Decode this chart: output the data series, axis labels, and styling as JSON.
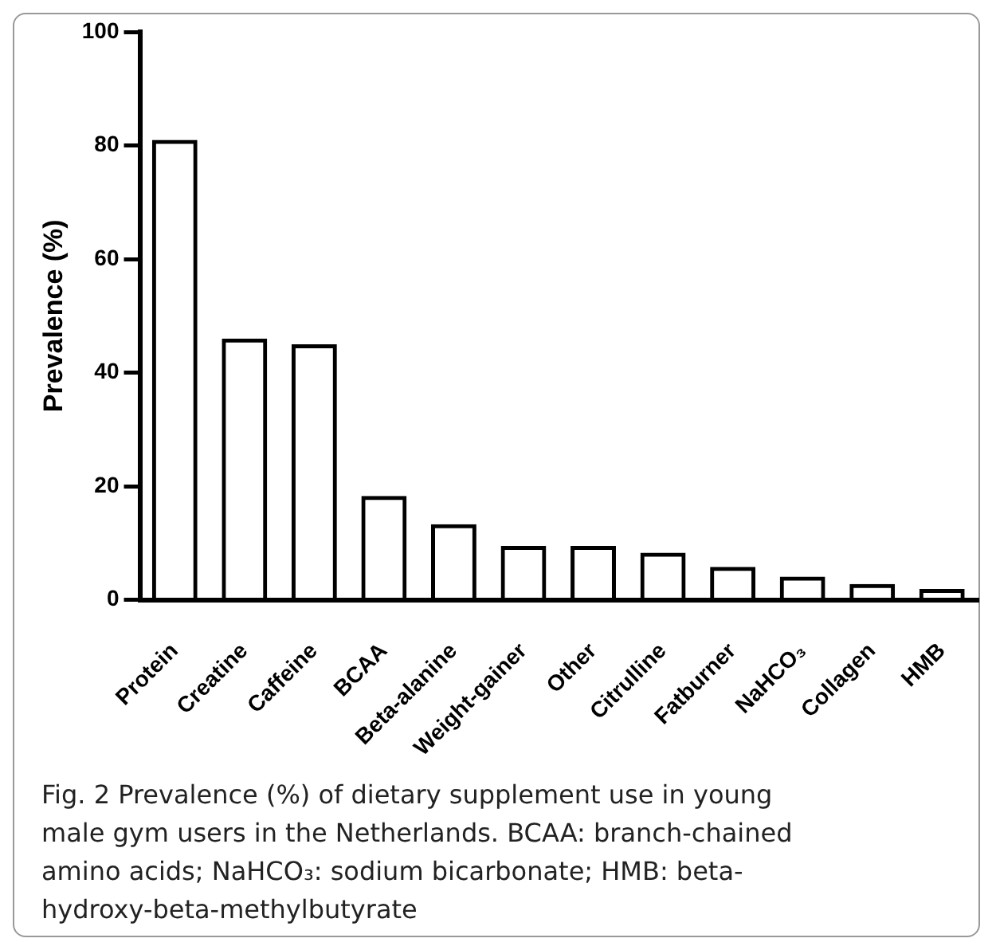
{
  "chart_data": {
    "type": "bar",
    "ylabel": "Prevalence (%)",
    "categories": [
      "Protein",
      "Creatine",
      "Caffeine",
      "BCAA",
      "Beta-alanine",
      "Weight-gainer",
      "Other",
      "Citrulline",
      "Fatburner",
      "NaHCO₃",
      "Collagen",
      "HMB"
    ],
    "values": [
      81,
      46,
      45,
      18.3,
      13.3,
      9.5,
      9.5,
      8.3,
      5.8,
      4.1,
      2.8,
      1.9
    ],
    "color": "#000000",
    "ylim": [
      0,
      100
    ],
    "yticks": [
      0,
      20,
      40,
      60,
      80,
      100
    ],
    "grid": false,
    "legend": false,
    "annotations": [
      "Fig. 2  Prevalence (%) of dietary supplement use in young male gym users in the Netherlands. BCAA: branch-chained amino acids; NaHCO₃: sodium bicarbonate; HMB: beta-hydroxy-beta-methylbutyrate"
    ]
  }
}
